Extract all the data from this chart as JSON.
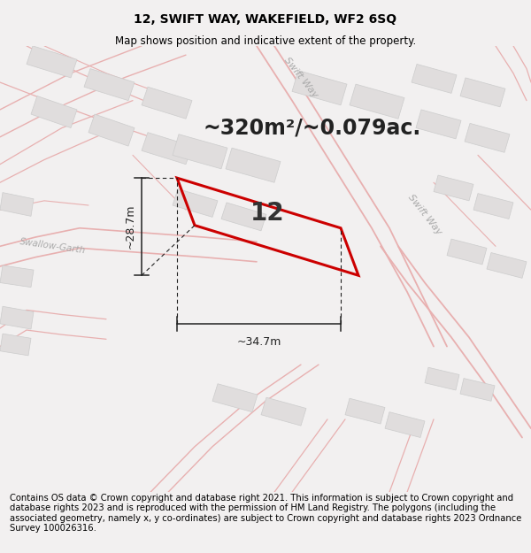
{
  "title": "12, SWIFT WAY, WAKEFIELD, WF2 6SQ",
  "subtitle": "Map shows position and indicative extent of the property.",
  "area_text": "~320m²/~0.079ac.",
  "plot_number": "12",
  "dim_width": "~34.7m",
  "dim_height": "~28.7m",
  "road_label_upper": "Swift Way",
  "road_label_lower": "Swift Way",
  "road_label_left": "Swallow-Garth",
  "footer_text": "Contains OS data © Crown copyright and database right 2021. This information is subject to Crown copyright and database rights 2023 and is reproduced with the permission of HM Land Registry. The polygons (including the associated geometry, namely x, y co-ordinates) are subject to Crown copyright and database rights 2023 Ordnance Survey 100026316.",
  "bg_color": "#f2f0f0",
  "map_bg": "#f8f7f7",
  "road_color": "#e8b0b0",
  "building_fill": "#e0dddd",
  "building_edge": "#cccccc",
  "plot_edge": "#cc0000",
  "plot_edge_width": 2.2,
  "dim_line_color": "#222222",
  "title_fontsize": 10,
  "subtitle_fontsize": 8.5,
  "area_fontsize": 17,
  "plot_num_fontsize": 20,
  "footer_fontsize": 7.2,
  "road_label_color": "#aaaaaa"
}
